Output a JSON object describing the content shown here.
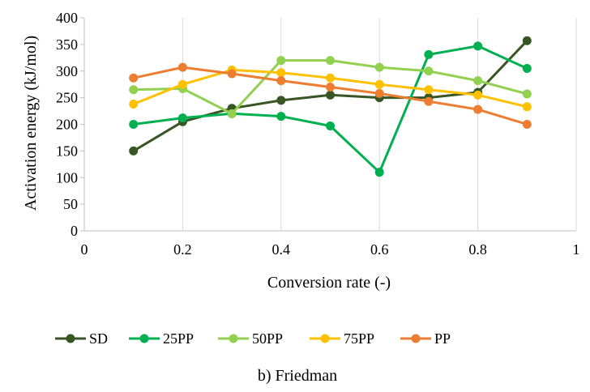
{
  "chart_data": {
    "type": "line",
    "title": "",
    "caption": "b) Friedman",
    "xlabel": "Conversion rate (-)",
    "ylabel": "Activation energy (kJ/mol)",
    "xlim": [
      0,
      1
    ],
    "ylim": [
      0,
      400
    ],
    "xticks": [
      "0",
      "0.2",
      "0.4",
      "0.6",
      "0.8",
      "1"
    ],
    "xtick_values": [
      0,
      0.2,
      0.4,
      0.6,
      0.8,
      1
    ],
    "yticks": [
      "0",
      "50",
      "100",
      "150",
      "200",
      "250",
      "300",
      "350",
      "400"
    ],
    "ytick_values": [
      0,
      50,
      100,
      150,
      200,
      250,
      300,
      350,
      400
    ],
    "grid": "vertical",
    "legend_position": "bottom",
    "x": [
      0.1,
      0.2,
      0.3,
      0.4,
      0.5,
      0.6,
      0.7,
      0.8,
      0.9
    ],
    "series": [
      {
        "name": "SD",
        "color": "#375623",
        "values": [
          150,
          205,
          230,
          245,
          255,
          250,
          250,
          260,
          357
        ]
      },
      {
        "name": "25PP",
        "color": "#00B050",
        "values": [
          200,
          212,
          220,
          215,
          197,
          110,
          331,
          347,
          305
        ]
      },
      {
        "name": "50PP",
        "color": "#92D050",
        "values": [
          265,
          267,
          220,
          320,
          320,
          307,
          300,
          282,
          257
        ]
      },
      {
        "name": "75PP",
        "color": "#FFC000",
        "values": [
          238,
          275,
          302,
          297,
          287,
          275,
          265,
          255,
          233
        ]
      },
      {
        "name": "PP",
        "color": "#ED7D31",
        "values": [
          287,
          307,
          295,
          282,
          270,
          258,
          243,
          228,
          200
        ]
      }
    ]
  }
}
